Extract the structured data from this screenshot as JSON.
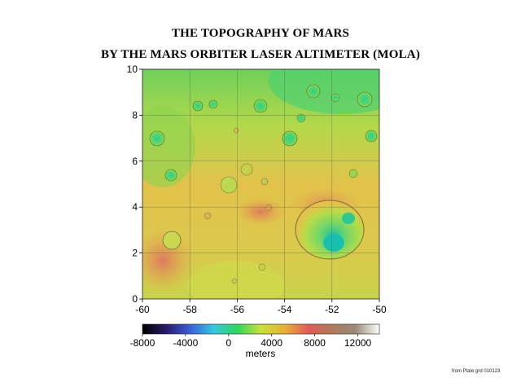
{
  "title_line1": "THE TOPOGRAPHY OF MARS",
  "title_line2": "BY THE MARS ORBITER LASER ALTIMETER (MOLA)",
  "map": {
    "x_ticks": [
      "-60",
      "-58",
      "-56",
      "-54",
      "-52",
      "-50"
    ],
    "y_ticks": [
      "0",
      "2",
      "4",
      "6",
      "8",
      "10"
    ],
    "x_range": [
      -60,
      -50
    ],
    "y_range": [
      0,
      10
    ],
    "grid": true
  },
  "colorbar": {
    "ticks": [
      "-8000",
      "-4000",
      "0",
      "4000",
      "8000",
      "12000"
    ],
    "label": "meters",
    "range": [
      -8000,
      14000
    ],
    "colors": [
      "#000000",
      "#2b1a6b",
      "#3a5fd6",
      "#34c7e0",
      "#2fd65a",
      "#c8e03a",
      "#e8b03a",
      "#e05a5a",
      "#b07a5a",
      "#9a8a7a",
      "#ffffff"
    ]
  },
  "credit": "from Plate grd 010123"
}
